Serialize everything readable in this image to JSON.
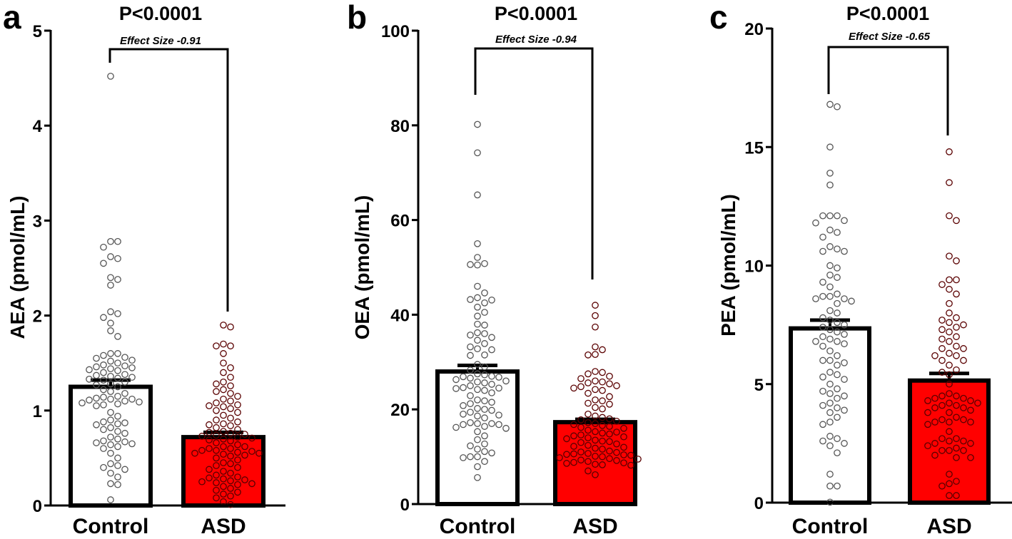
{
  "chart_data": [
    {
      "type": "bar",
      "panel": "a",
      "title": "P<0.0001",
      "subtitle": "Effect Size -0.91",
      "xlabel": "",
      "ylabel": "AEA (pmol/mL)",
      "ylim": [
        0,
        5
      ],
      "yticks": [
        "0",
        "1",
        "2",
        "3",
        "4",
        "5"
      ],
      "ytick_values": [
        0,
        1,
        2,
        3,
        4,
        5
      ],
      "categories": [
        "Control",
        "ASD"
      ],
      "values": [
        1.25,
        0.72
      ],
      "sem": [
        0.07,
        0.05
      ],
      "bar_colors": [
        "#ffffff",
        "#ff0000"
      ],
      "points": [
        [
          4.52,
          2.78,
          2.78,
          2.72,
          2.62,
          2.6,
          2.55,
          2.4,
          2.38,
          2.32,
          2.04,
          2.02,
          1.98,
          1.92,
          1.84,
          1.78,
          1.6,
          1.6,
          1.58,
          1.56,
          1.55,
          1.53,
          1.52,
          1.5,
          1.48,
          1.47,
          1.46,
          1.45,
          1.44,
          1.43,
          1.42,
          1.4,
          1.38,
          1.37,
          1.36,
          1.35,
          1.34,
          1.33,
          1.32,
          1.3,
          1.28,
          1.27,
          1.25,
          1.22,
          1.2,
          1.18,
          1.15,
          1.14,
          1.13,
          1.12,
          1.12,
          1.11,
          1.1,
          1.09,
          1.08,
          1.07,
          1.06,
          1.05,
          0.98,
          0.94,
          0.9,
          0.88,
          0.87,
          0.86,
          0.85,
          0.82,
          0.8,
          0.78,
          0.76,
          0.72,
          0.7,
          0.68,
          0.67,
          0.66,
          0.65,
          0.64,
          0.62,
          0.6,
          0.55,
          0.5,
          0.44,
          0.42,
          0.4,
          0.38,
          0.34,
          0.3,
          0.23,
          0.22,
          0.06
        ],
        [
          1.9,
          1.88,
          1.7,
          1.68,
          1.68,
          1.6,
          1.5,
          1.45,
          1.4,
          1.35,
          1.3,
          1.28,
          1.26,
          1.22,
          1.2,
          1.18,
          1.15,
          1.12,
          1.1,
          1.08,
          1.06,
          1.05,
          1.04,
          1.02,
          1.0,
          0.98,
          0.95,
          0.92,
          0.9,
          0.88,
          0.86,
          0.85,
          0.84,
          0.82,
          0.8,
          0.78,
          0.77,
          0.76,
          0.75,
          0.74,
          0.73,
          0.72,
          0.71,
          0.7,
          0.69,
          0.68,
          0.66,
          0.64,
          0.62,
          0.62,
          0.6,
          0.6,
          0.58,
          0.58,
          0.57,
          0.56,
          0.55,
          0.55,
          0.54,
          0.53,
          0.52,
          0.5,
          0.48,
          0.45,
          0.44,
          0.42,
          0.4,
          0.38,
          0.36,
          0.34,
          0.32,
          0.3,
          0.29,
          0.28,
          0.27,
          0.26,
          0.25,
          0.24,
          0.23,
          0.22,
          0.2,
          0.18,
          0.16,
          0.14,
          0.12,
          0.1,
          0.08,
          0.04,
          0.01
        ]
      ]
    },
    {
      "type": "bar",
      "panel": "b",
      "title": "P<0.0001",
      "subtitle": "Effect Size -0.94",
      "xlabel": "",
      "ylabel": "OEA (pmol/mL)",
      "ylim": [
        0,
        100
      ],
      "yticks": [
        "0",
        "20",
        "40",
        "60",
        "80",
        "100"
      ],
      "ytick_values": [
        0,
        20,
        40,
        60,
        80,
        100
      ],
      "categories": [
        "Control",
        "ASD"
      ],
      "values": [
        28.0,
        17.3
      ],
      "sem": [
        1.3,
        0.6
      ],
      "bar_colors": [
        "#ffffff",
        "#ff0000"
      ],
      "points": [
        [
          80.2,
          74.2,
          65.3,
          55.0,
          52.1,
          50.8,
          50.6,
          50.5,
          46.0,
          44.6,
          43.6,
          43.2,
          43.1,
          42.5,
          41.6,
          40.5,
          39.7,
          38.0,
          37.8,
          36.2,
          36.0,
          35.7,
          35.2,
          34.6,
          33.9,
          33.2,
          32.8,
          32.6,
          31.5,
          31.4,
          29.5,
          29.0,
          28.3,
          27.5,
          27.3,
          27.0,
          26.9,
          26.8,
          26.6,
          26.3,
          26.0,
          25.8,
          25.6,
          25.3,
          25.0,
          24.6,
          24.5,
          24.4,
          24.2,
          24.0,
          23.5,
          22.9,
          22.0,
          21.8,
          21.5,
          21.2,
          20.8,
          20.2,
          20.0,
          19.8,
          19.4,
          19.0,
          18.8,
          18.6,
          18.2,
          17.2,
          17.0,
          17.0,
          16.8,
          16.8,
          16.4,
          16.2,
          16.0,
          15.3,
          14.4,
          13.6,
          12.7,
          12.3,
          11.6,
          11.1,
          10.8,
          10.0,
          10.0,
          9.8,
          9.0,
          7.9,
          5.6
        ],
        [
          42.0,
          39.8,
          37.4,
          33.2,
          32.6,
          31.6,
          31.5,
          28.0,
          27.8,
          27.5,
          27.0,
          26.5,
          26.0,
          25.8,
          25.6,
          25.4,
          25.0,
          24.8,
          24.5,
          24.2,
          24.0,
          23.4,
          22.7,
          22.0,
          21.8,
          21.3,
          21.1,
          20.4,
          20.1,
          19.0,
          18.6,
          18.3,
          18.0,
          17.8,
          17.5,
          17.2,
          17.0,
          16.8,
          16.6,
          16.4,
          16.2,
          16.0,
          15.6,
          15.3,
          15.2,
          15.0,
          14.8,
          14.6,
          14.4,
          14.2,
          14.0,
          13.8,
          13.5,
          13.3,
          13.2,
          13.0,
          12.7,
          12.4,
          12.2,
          12.0,
          11.8,
          11.6,
          11.2,
          11.0,
          10.9,
          10.7,
          10.6,
          10.5,
          10.4,
          10.3,
          10.1,
          10.0,
          9.8,
          9.6,
          9.5,
          9.3,
          9.2,
          9.0,
          8.8,
          8.7,
          8.6,
          8.4,
          8.3,
          8.2,
          7.0,
          6.2
        ]
      ]
    },
    {
      "type": "bar",
      "panel": "c",
      "title": "P<0.0001",
      "subtitle": "Effect Size -0.65",
      "xlabel": "",
      "ylabel": "PEA (pmol/mL)",
      "ylim": [
        0,
        20
      ],
      "yticks": [
        "0",
        "5",
        "10",
        "15",
        "20"
      ],
      "ytick_values": [
        0,
        5,
        10,
        15,
        20
      ],
      "categories": [
        "Control",
        "ASD"
      ],
      "values": [
        7.35,
        5.15
      ],
      "sem": [
        0.35,
        0.3
      ],
      "bar_colors": [
        "#ffffff",
        "#ff0000"
      ],
      "points": [
        [
          16.8,
          16.7,
          15.0,
          13.9,
          13.4,
          12.1,
          12.1,
          12.1,
          11.9,
          11.8,
          11.5,
          11.4,
          11.2,
          10.8,
          10.7,
          10.6,
          10.6,
          10.0,
          9.9,
          9.6,
          9.5,
          9.3,
          9.1,
          8.8,
          8.7,
          8.7,
          8.6,
          8.6,
          8.5,
          8.4,
          8.1,
          8.0,
          7.8,
          7.7,
          7.6,
          7.5,
          7.4,
          7.3,
          7.2,
          7.1,
          7.0,
          6.9,
          6.8,
          6.8,
          6.7,
          6.6,
          6.4,
          6.2,
          6.0,
          6.0,
          5.9,
          5.8,
          5.5,
          5.4,
          5.3,
          5.2,
          5.0,
          4.8,
          4.7,
          4.6,
          4.5,
          4.4,
          4.2,
          4.1,
          4.0,
          3.9,
          3.8,
          3.6,
          3.4,
          3.3,
          2.8,
          2.7,
          2.6,
          2.5,
          2.4,
          2.1,
          1.2,
          0.7,
          0.7,
          0.02
        ],
        [
          14.8,
          13.5,
          12.1,
          11.9,
          10.4,
          10.2,
          9.4,
          9.4,
          9.2,
          9.0,
          8.8,
          8.4,
          8.0,
          7.8,
          7.7,
          7.6,
          7.5,
          7.4,
          7.3,
          7.2,
          7.0,
          6.9,
          6.8,
          6.6,
          6.5,
          6.5,
          6.3,
          6.2,
          6.2,
          6.0,
          6.0,
          5.8,
          5.6,
          5.5,
          5.4,
          5.0,
          4.6,
          4.5,
          4.5,
          4.4,
          4.4,
          4.3,
          4.3,
          4.2,
          4.2,
          4.1,
          4.1,
          4.0,
          4.0,
          3.9,
          3.8,
          3.8,
          3.6,
          3.5,
          3.5,
          3.4,
          3.4,
          3.4,
          3.3,
          3.0,
          2.7,
          2.7,
          2.6,
          2.6,
          2.5,
          2.5,
          2.4,
          2.3,
          2.2,
          2.2,
          2.2,
          2.0,
          1.9,
          1.9,
          1.2,
          0.9,
          0.8,
          0.7,
          0.3,
          0.3
        ]
      ]
    }
  ]
}
